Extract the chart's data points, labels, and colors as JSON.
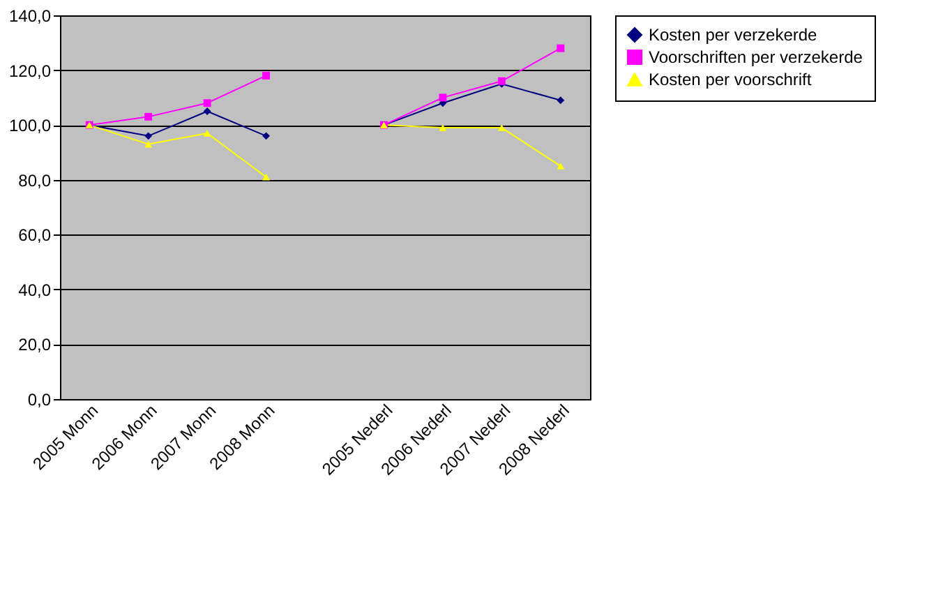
{
  "chart_data": {
    "type": "line",
    "categories": [
      "2005 Monn",
      "2006 Monn",
      "2007 Monn",
      "2008 Monn",
      null,
      "2005 Nederl",
      "2006 Nederl",
      "2007 Nederl",
      "2008 Nederl"
    ],
    "series": [
      {
        "name": "Kosten per verzekerde",
        "color": "#000080",
        "marker": "diamond",
        "values": [
          100,
          96,
          105,
          96,
          null,
          100,
          108,
          115,
          109
        ]
      },
      {
        "name": "Voorschriften per verzekerde",
        "color": "#ff00ff",
        "marker": "square",
        "values": [
          100,
          103,
          108,
          118,
          null,
          100,
          110,
          116,
          128
        ]
      },
      {
        "name": "Kosten per voorschrift",
        "color": "#ffff00",
        "marker": "triangle",
        "values": [
          100,
          93,
          97,
          81,
          null,
          100,
          99,
          99,
          85
        ]
      }
    ],
    "ylim": [
      0,
      140
    ],
    "yticks": [
      {
        "value": 0,
        "label": "0,0"
      },
      {
        "value": 20,
        "label": "20,0"
      },
      {
        "value": 40,
        "label": "40,0"
      },
      {
        "value": 60,
        "label": "60,0"
      },
      {
        "value": 80,
        "label": "80,0"
      },
      {
        "value": 100,
        "label": "100,0"
      },
      {
        "value": 120,
        "label": "120,0"
      },
      {
        "value": 140,
        "label": "140,0"
      }
    ],
    "grid": "y",
    "legend": "right",
    "line_style": "solid"
  }
}
